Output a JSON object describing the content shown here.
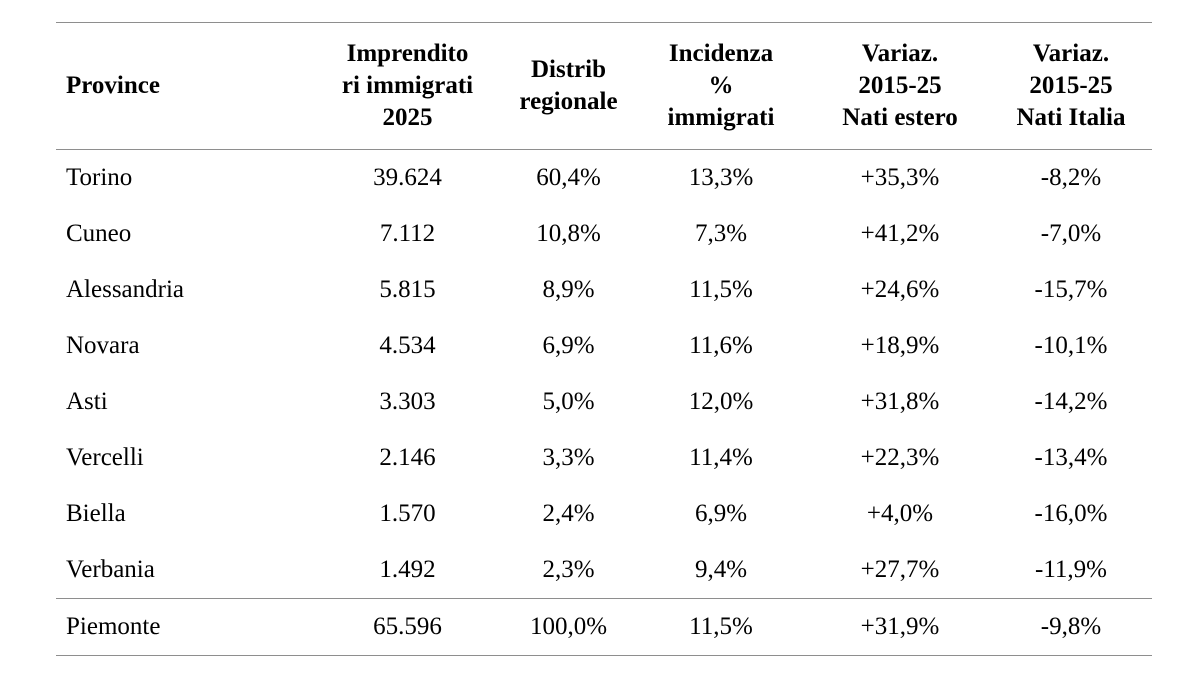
{
  "colors": {
    "rule": "#8e8e8e",
    "text": "#000000",
    "background": "#ffffff"
  },
  "table": {
    "columns": [
      {
        "label": "Province",
        "align": "left"
      },
      {
        "label": "Imprendito\nri immigrati\n2025",
        "align": "center"
      },
      {
        "label": "Distrib\nregionale",
        "align": "center"
      },
      {
        "label": "Incidenza\n%\nimmigrati",
        "align": "center"
      },
      {
        "label": "Variaz.\n2015-25\nNati estero",
        "align": "center"
      },
      {
        "label": "Variaz.\n2015-25\nNati Italia",
        "align": "center"
      }
    ],
    "rows": [
      {
        "cells": [
          "Torino",
          "39.624",
          "60,4%",
          "13,3%",
          "+35,3%",
          "-8,2%"
        ]
      },
      {
        "cells": [
          "Cuneo",
          "7.112",
          "10,8%",
          "7,3%",
          "+41,2%",
          "-7,0%"
        ]
      },
      {
        "cells": [
          "Alessandria",
          "5.815",
          "8,9%",
          "11,5%",
          "+24,6%",
          "-15,7%"
        ]
      },
      {
        "cells": [
          "Novara",
          "4.534",
          "6,9%",
          "11,6%",
          "+18,9%",
          "-10,1%"
        ]
      },
      {
        "cells": [
          "Asti",
          "3.303",
          "5,0%",
          "12,0%",
          "+31,8%",
          "-14,2%"
        ]
      },
      {
        "cells": [
          "Vercelli",
          "2.146",
          "3,3%",
          "11,4%",
          "+22,3%",
          "-13,4%"
        ]
      },
      {
        "cells": [
          "Biella",
          "1.570",
          "2,4%",
          "6,9%",
          "+4,0%",
          "-16,0%"
        ]
      },
      {
        "cells": [
          "Verbania",
          "1.492",
          "2,3%",
          "9,4%",
          "+27,7%",
          "-11,9%"
        ]
      }
    ],
    "total_row": {
      "cells": [
        "Piemonte",
        "65.596",
        "100,0%",
        "11,5%",
        "+31,9%",
        "-9,8%"
      ]
    }
  }
}
